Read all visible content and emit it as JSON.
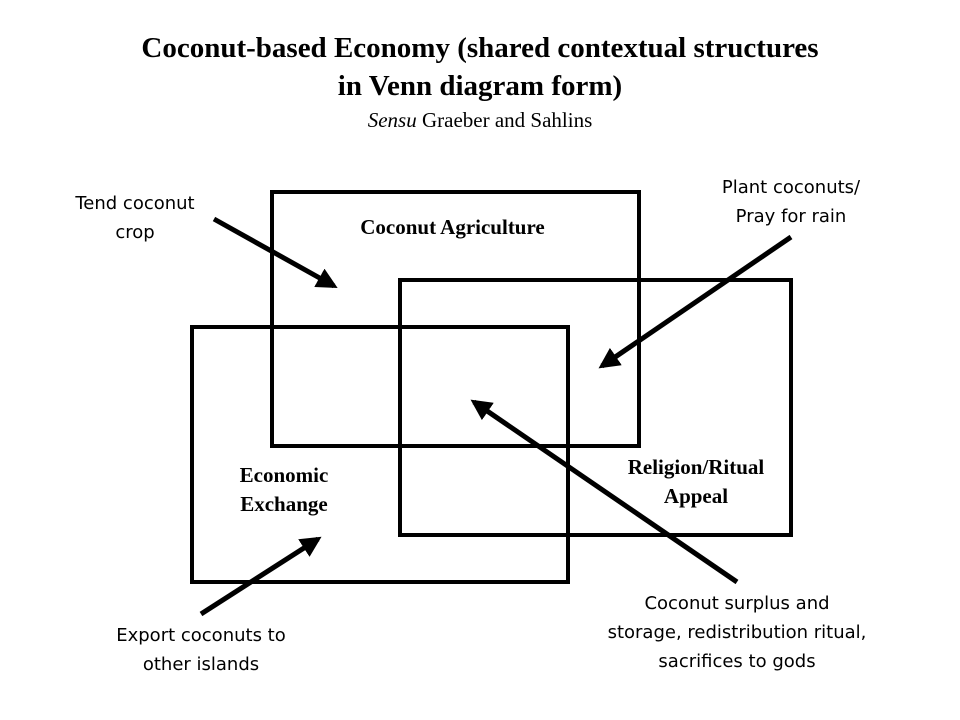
{
  "title": {
    "line1": "Coconut-based Economy (shared contextual structures",
    "line2": "in Venn diagram form)",
    "subtitle_italic": "Sensu",
    "subtitle_rest": " Graeber and Sahlins"
  },
  "sets": {
    "agriculture": "Coconut Agriculture",
    "exchange_line1": "Economic",
    "exchange_line2": "Exchange",
    "ritual_line1": "Religion/Ritual",
    "ritual_line2": "Appeal"
  },
  "annotations": {
    "tend_line1": "Tend coconut",
    "tend_line2": "crop",
    "plant_line1": "Plant coconuts/",
    "plant_line2": "Pray for rain",
    "export_line1": "Export coconuts to",
    "export_line2": "other islands",
    "surplus_line1": "Coconut surplus and",
    "surplus_line2": "storage, redistribution ritual,",
    "surplus_line3": "sacrifices to gods"
  }
}
